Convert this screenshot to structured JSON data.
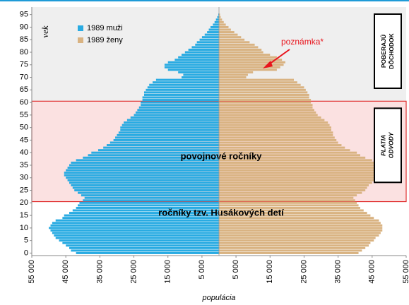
{
  "chart_data": {
    "type": "population-pyramid",
    "xlabel": "populácia",
    "ylabel": "vek",
    "categories": [
      0,
      1,
      2,
      3,
      4,
      5,
      6,
      7,
      8,
      9,
      10,
      11,
      12,
      13,
      14,
      15,
      16,
      17,
      18,
      19,
      20,
      21,
      22,
      23,
      24,
      25,
      26,
      27,
      28,
      29,
      30,
      31,
      32,
      33,
      34,
      35,
      36,
      37,
      38,
      39,
      40,
      41,
      42,
      43,
      44,
      45,
      46,
      47,
      48,
      49,
      50,
      51,
      52,
      53,
      54,
      55,
      56,
      57,
      58,
      59,
      60,
      61,
      62,
      63,
      64,
      65,
      66,
      67,
      68,
      69,
      70,
      71,
      72,
      73,
      74,
      75,
      76,
      77,
      78,
      79,
      80,
      81,
      82,
      83,
      84,
      85,
      86,
      87,
      88,
      89,
      90,
      91,
      92,
      93,
      94,
      95
    ],
    "series": [
      {
        "name": "1989 muži",
        "color": "#29abe2",
        "side": "left",
        "values": [
          42000,
          43500,
          44000,
          45000,
          46000,
          47000,
          48000,
          48500,
          49000,
          49500,
          50000,
          49500,
          49000,
          48000,
          46000,
          45500,
          44000,
          43000,
          42000,
          41500,
          41000,
          40000,
          39500,
          40500,
          41500,
          42500,
          43000,
          43500,
          44000,
          44500,
          45000,
          45500,
          45500,
          45000,
          44500,
          44000,
          43500,
          42000,
          40000,
          38500,
          37500,
          35500,
          34000,
          33000,
          32000,
          31000,
          30500,
          30000,
          29500,
          29000,
          29000,
          28500,
          28000,
          27000,
          26000,
          25000,
          24500,
          24000,
          23500,
          23000,
          23000,
          22500,
          22500,
          22000,
          22000,
          21500,
          21000,
          20500,
          19500,
          18500,
          11000,
          10500,
          12000,
          15000,
          16000,
          16000,
          15000,
          13000,
          12000,
          11000,
          10000,
          9000,
          8000,
          7000,
          6500,
          5700,
          5000,
          4200,
          3500,
          3000,
          2500,
          1800,
          1300,
          900,
          500,
          200
        ]
      },
      {
        "name": "1989 ženy",
        "color": "#d9b382",
        "side": "right",
        "values": [
          41000,
          42000,
          43000,
          44000,
          44500,
          45500,
          46000,
          47000,
          47500,
          48000,
          48000,
          48000,
          47500,
          47000,
          45500,
          44500,
          43500,
          42500,
          41500,
          41000,
          40500,
          40000,
          39500,
          40500,
          42000,
          43000,
          43500,
          44000,
          45000,
          45500,
          46000,
          46500,
          47000,
          47500,
          47500,
          47000,
          46500,
          45000,
          43000,
          41500,
          40500,
          38500,
          37000,
          36000,
          35000,
          34500,
          34000,
          33500,
          33500,
          33000,
          33000,
          32500,
          32000,
          31000,
          30000,
          29000,
          28500,
          28000,
          27500,
          27500,
          27000,
          27000,
          26500,
          26500,
          26000,
          25500,
          25000,
          24000,
          23000,
          22000,
          8000,
          8500,
          10000,
          17000,
          18000,
          19000,
          19500,
          18500,
          17000,
          15000,
          13000,
          12500,
          11500,
          10500,
          9000,
          7500,
          6500,
          5500,
          4500,
          3500,
          2800,
          2000,
          1400,
          900,
          500,
          300
        ]
      }
    ],
    "xlim": [
      -55000,
      55000
    ],
    "xticks": [
      {
        "value": -55000,
        "label": "55 000"
      },
      {
        "value": -45000,
        "label": "45 000"
      },
      {
        "value": -35000,
        "label": "35 000"
      },
      {
        "value": -25000,
        "label": "25 000"
      },
      {
        "value": -15000,
        "label": "15 000"
      },
      {
        "value": -5000,
        "label": "5 000"
      },
      {
        "value": 5000,
        "label": "5 000"
      },
      {
        "value": 15000,
        "label": "15 000"
      },
      {
        "value": 25000,
        "label": "25 000"
      },
      {
        "value": 35000,
        "label": "35 000"
      },
      {
        "value": 45000,
        "label": "45 000"
      },
      {
        "value": 55000,
        "label": "55 000"
      }
    ],
    "ylim": [
      -1,
      98
    ],
    "yticks": [
      0,
      5,
      10,
      15,
      20,
      25,
      30,
      35,
      40,
      45,
      50,
      55,
      60,
      65,
      70,
      75,
      80,
      85,
      90,
      95
    ],
    "bands": [
      {
        "from": 60.5,
        "to": 98,
        "color": "#efefef",
        "label": [
          "POBERAJÚ",
          "DÔCHODOK"
        ]
      },
      {
        "from": 20.5,
        "to": 60.5,
        "color": "#fbe1e1",
        "label": [
          "PLATIA",
          "ODVODY"
        ]
      }
    ],
    "annotations": [
      "povojnové ročníky",
      "ročníky tzv. Husákových detí",
      "poznámka*"
    ]
  }
}
